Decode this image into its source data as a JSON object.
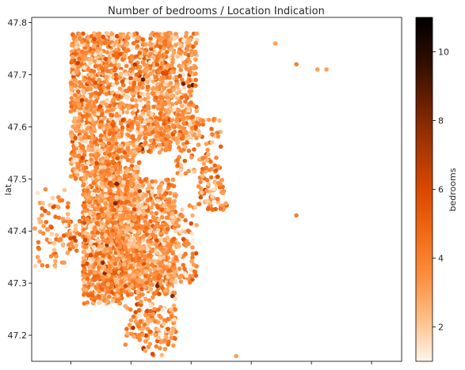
{
  "chart_data": {
    "type": "scatter",
    "title": "Number of bedrooms / Location Indication",
    "xlabel": "",
    "ylabel": "lat",
    "colorbar_label": "bedrooms",
    "xlim": [
      -122.53,
      -121.3
    ],
    "ylim": [
      47.15,
      47.81
    ],
    "y_ticks": [
      47.2,
      47.3,
      47.4,
      47.5,
      47.6,
      47.7,
      47.8
    ],
    "x_ticks": [
      -122.4,
      -122.2,
      -122.0,
      -121.8,
      -121.6,
      -121.4
    ],
    "x_tick_labels_visible": false,
    "colorbar_ticks": [
      2,
      4,
      6,
      8,
      10
    ],
    "color_range": [
      1,
      11
    ],
    "colormap": "Oranges",
    "colormap_stops": [
      "#fff5eb",
      "#fdbe85",
      "#fd8d3c",
      "#f16913",
      "#d94801",
      "#a63603",
      "#6b1f01",
      "#2e0d00",
      "#000000"
    ],
    "grid": false,
    "points_sample": [
      {
        "x": -121.72,
        "y": 47.76,
        "v": 3
      },
      {
        "x": -121.65,
        "y": 47.72,
        "v": 4
      },
      {
        "x": -121.58,
        "y": 47.71,
        "v": 3
      },
      {
        "x": -121.55,
        "y": 47.71,
        "v": 3
      },
      {
        "x": -121.65,
        "y": 47.43,
        "v": 4
      },
      {
        "x": -121.85,
        "y": 47.16,
        "v": 3
      },
      {
        "x": -121.93,
        "y": 47.57,
        "v": 2
      },
      {
        "x": -121.96,
        "y": 47.54,
        "v": 4
      },
      {
        "x": -122.51,
        "y": 47.35,
        "v": 3
      },
      {
        "x": -122.47,
        "y": 47.45,
        "v": 2
      }
    ]
  }
}
